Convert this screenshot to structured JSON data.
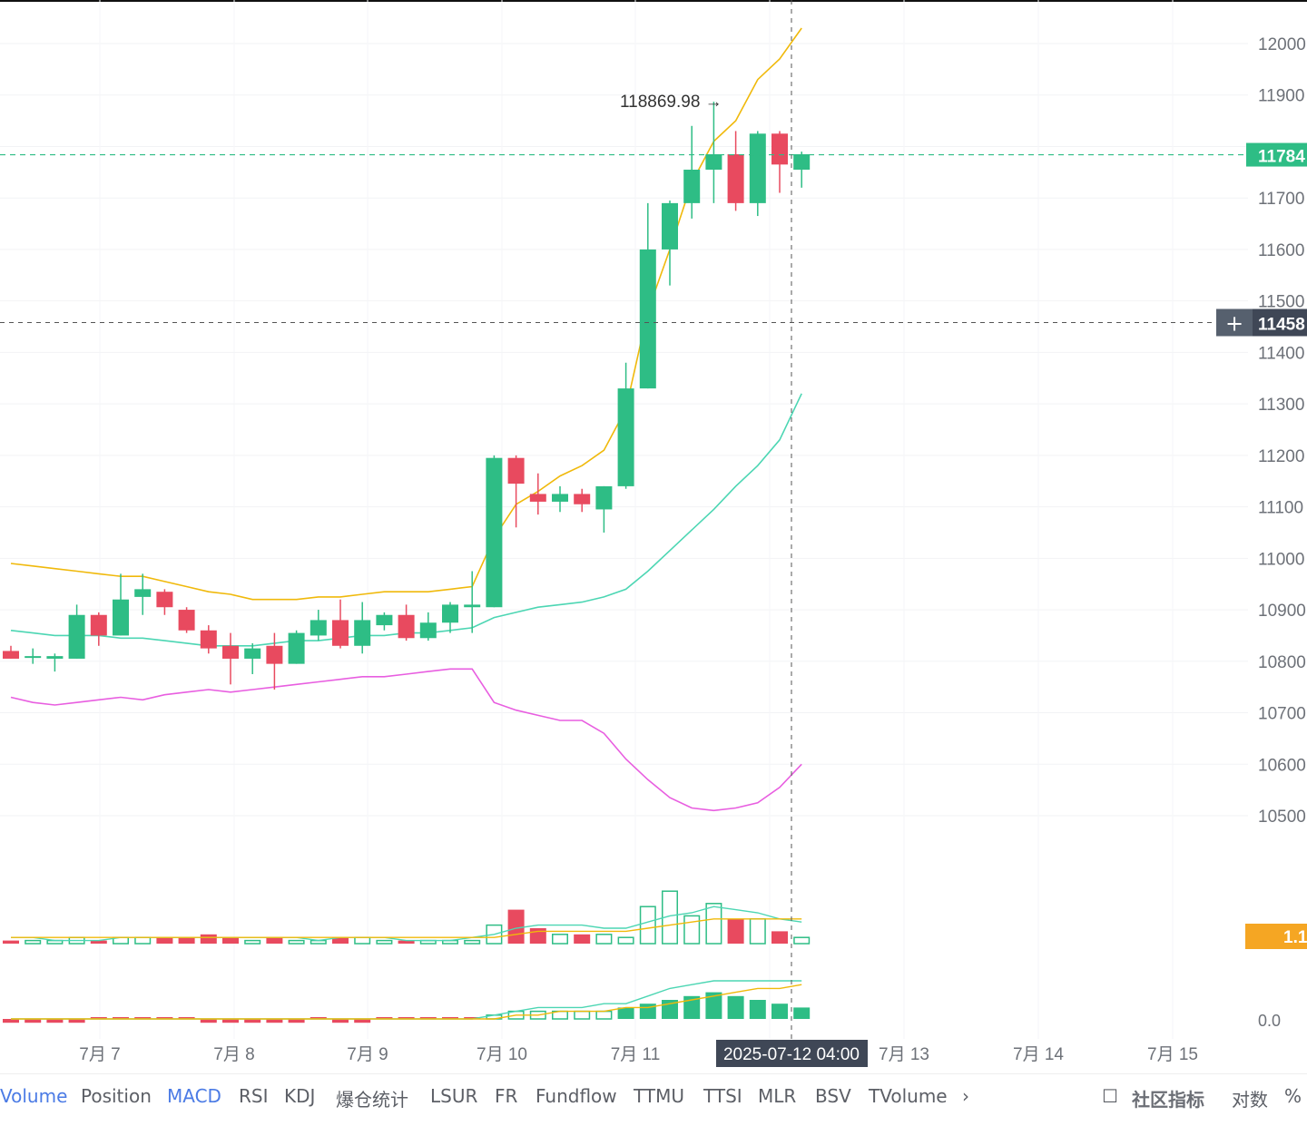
{
  "chart_data": {
    "type": "candlestick",
    "x_axis": {
      "labels": [
        "7月 7",
        "7月 8",
        "7月 9",
        "7月 10",
        "7月 11",
        "7月 13",
        "7月 14",
        "7月 15"
      ],
      "crosshair_label": "2025-07-12 04:00"
    },
    "y_axis": {
      "ticks": [
        "12000",
        "11900",
        "11700",
        "11600",
        "11500",
        "11400",
        "11300",
        "11200",
        "11100",
        "11000",
        "10900",
        "10800",
        "10700",
        "10600",
        "10500"
      ],
      "current_price_tag": "11784",
      "crosshair_price_tag": "11458",
      "volume_tag": "1.1",
      "lower_tag": "0.0"
    },
    "annotations": {
      "high_label": "118869.98 →"
    },
    "candles": [
      {
        "o": 108200,
        "h": 108300,
        "l": 108050,
        "c": 108050
      },
      {
        "o": 108100,
        "h": 108250,
        "l": 107950,
        "c": 108100
      },
      {
        "o": 108050,
        "h": 108150,
        "l": 107800,
        "c": 108100
      },
      {
        "o": 108050,
        "h": 109100,
        "l": 108050,
        "c": 108900
      },
      {
        "o": 108900,
        "h": 108950,
        "l": 108300,
        "c": 108500
      },
      {
        "o": 108500,
        "h": 109700,
        "l": 108500,
        "c": 109200
      },
      {
        "o": 109250,
        "h": 109700,
        "l": 108900,
        "c": 109400
      },
      {
        "o": 109350,
        "h": 109400,
        "l": 108900,
        "c": 109050
      },
      {
        "o": 109000,
        "h": 109050,
        "l": 108550,
        "c": 108600
      },
      {
        "o": 108600,
        "h": 108700,
        "l": 108150,
        "c": 108250
      },
      {
        "o": 108300,
        "h": 108550,
        "l": 107550,
        "c": 108050
      },
      {
        "o": 108050,
        "h": 108350,
        "l": 107750,
        "c": 108250
      },
      {
        "o": 108300,
        "h": 108550,
        "l": 107450,
        "c": 107950
      },
      {
        "o": 107950,
        "h": 108600,
        "l": 107950,
        "c": 108550
      },
      {
        "o": 108500,
        "h": 109000,
        "l": 108400,
        "c": 108800
      },
      {
        "o": 108800,
        "h": 109200,
        "l": 108250,
        "c": 108300
      },
      {
        "o": 108300,
        "h": 109150,
        "l": 108150,
        "c": 108800
      },
      {
        "o": 108700,
        "h": 108950,
        "l": 108600,
        "c": 108900
      },
      {
        "o": 108900,
        "h": 109100,
        "l": 108400,
        "c": 108450
      },
      {
        "o": 108450,
        "h": 108950,
        "l": 108400,
        "c": 108750
      },
      {
        "o": 108750,
        "h": 109150,
        "l": 108550,
        "c": 109100
      },
      {
        "o": 109050,
        "h": 109750,
        "l": 108550,
        "c": 109100
      },
      {
        "o": 109050,
        "h": 112000,
        "l": 109050,
        "c": 111950
      },
      {
        "o": 111950,
        "h": 112000,
        "l": 110600,
        "c": 111450
      },
      {
        "o": 111250,
        "h": 111650,
        "l": 110850,
        "c": 111100
      },
      {
        "o": 111100,
        "h": 111400,
        "l": 110900,
        "c": 111250
      },
      {
        "o": 111250,
        "h": 111350,
        "l": 110900,
        "c": 111050
      },
      {
        "o": 110950,
        "h": 111400,
        "l": 110500,
        "c": 111400
      },
      {
        "o": 111400,
        "h": 113800,
        "l": 111350,
        "c": 113300
      },
      {
        "o": 113300,
        "h": 116900,
        "l": 113300,
        "c": 116000
      },
      {
        "o": 116000,
        "h": 116950,
        "l": 115300,
        "c": 116900
      },
      {
        "o": 116900,
        "h": 118400,
        "l": 116600,
        "c": 117550
      },
      {
        "o": 117550,
        "h": 118870,
        "l": 116900,
        "c": 117850
      },
      {
        "o": 117850,
        "h": 118300,
        "l": 116750,
        "c": 116900
      },
      {
        "o": 116900,
        "h": 118300,
        "l": 116650,
        "c": 118250
      },
      {
        "o": 118250,
        "h": 118300,
        "l": 117100,
        "c": 117650
      },
      {
        "o": 117550,
        "h": 117900,
        "l": 117200,
        "c": 117850
      }
    ],
    "boll_upper": [
      109900,
      109850,
      109800,
      109750,
      109700,
      109650,
      109650,
      109550,
      109450,
      109350,
      109300,
      109200,
      109200,
      109200,
      109250,
      109250,
      109300,
      109350,
      109350,
      109350,
      109400,
      109450,
      110400,
      111050,
      111300,
      111600,
      111800,
      112100,
      112900,
      114800,
      116000,
      117300,
      118100,
      118500,
      119300,
      119700,
      120300
    ],
    "boll_mid": [
      108600,
      108550,
      108500,
      108500,
      108500,
      108450,
      108450,
      108400,
      108350,
      108300,
      108300,
      108300,
      108350,
      108400,
      108400,
      108450,
      108500,
      108500,
      108550,
      108550,
      108600,
      108650,
      108850,
      108950,
      109050,
      109100,
      109150,
      109250,
      109400,
      109750,
      110150,
      110550,
      110950,
      111400,
      111800,
      112300,
      113200
    ],
    "boll_lower": [
      107300,
      107200,
      107150,
      107200,
      107250,
      107300,
      107250,
      107350,
      107400,
      107450,
      107400,
      107450,
      107500,
      107550,
      107600,
      107650,
      107700,
      107700,
      107750,
      107800,
      107850,
      107850,
      107200,
      107050,
      106950,
      106850,
      106850,
      106600,
      106100,
      105700,
      105350,
      105150,
      105100,
      105150,
      105250,
      105550,
      106000
    ],
    "volume": [
      1,
      1,
      1,
      2,
      1,
      2,
      2,
      2,
      2,
      3,
      2,
      1,
      2,
      1,
      1,
      2,
      2,
      1,
      1,
      1,
      1,
      1,
      6,
      11,
      5,
      3,
      3,
      3,
      2,
      12,
      17,
      9,
      13,
      8,
      8,
      4,
      2
    ],
    "volume_ma1": [
      2,
      2,
      1,
      1,
      1,
      2,
      2,
      2,
      2,
      2,
      2,
      2,
      2,
      2,
      1,
      2,
      2,
      2,
      1,
      1,
      1,
      2,
      3,
      5,
      6,
      6,
      6,
      5,
      5,
      7,
      9,
      10,
      12,
      11,
      10,
      8,
      7
    ],
    "volume_ma2": [
      2,
      2,
      2,
      2,
      2,
      2,
      2,
      2,
      2,
      2,
      2,
      2,
      2,
      2,
      2,
      2,
      2,
      2,
      2,
      2,
      2,
      2,
      2,
      3,
      4,
      4,
      4,
      4,
      4,
      5,
      6,
      7,
      8,
      8,
      8,
      8,
      8
    ],
    "macd_hist": [
      -1,
      -1,
      -1,
      -1,
      0,
      0,
      0,
      0,
      0,
      -1,
      -1,
      -1,
      -1,
      -1,
      0,
      -1,
      -1,
      0,
      0,
      0,
      0,
      0,
      1,
      2,
      2,
      2,
      2,
      2,
      3,
      4,
      5,
      6,
      7,
      6,
      5,
      4,
      3
    ],
    "macd_dif": [
      0,
      0,
      0,
      0,
      0,
      0,
      0,
      0,
      0,
      0,
      0,
      0,
      0,
      0,
      0,
      0,
      0,
      0,
      0,
      0,
      0,
      0,
      1,
      2,
      3,
      3,
      3,
      4,
      4,
      6,
      8,
      9,
      10,
      10,
      10,
      10,
      10
    ],
    "macd_dea": [
      0,
      0,
      0,
      0,
      0,
      0,
      0,
      0,
      0,
      0,
      0,
      0,
      0,
      0,
      0,
      0,
      0,
      0,
      0,
      0,
      0,
      0,
      0,
      1,
      1,
      2,
      2,
      2,
      3,
      3,
      4,
      5,
      6,
      7,
      8,
      8,
      9
    ]
  },
  "toolbar": {
    "tabs": [
      "Volume",
      "Position",
      "MACD",
      "RSI",
      "KDJ",
      "爆仓统计",
      "LSUR",
      "FR",
      "Fundflow",
      "TTMU",
      "TTSI",
      "MLR",
      "BSV",
      "TVolume",
      "›"
    ],
    "active": [
      "Volume",
      "MACD"
    ],
    "community_label": "社区指标",
    "log_label": "对数",
    "percent_label": "%"
  },
  "colors": {
    "up": "#2ebd85",
    "down": "#e84a5f",
    "boll_upper": "#f0b90b",
    "boll_mid": "#4cd6b3",
    "boll_lower": "#e85ee0",
    "price_tag": "#2ebd85",
    "crosshair_tag": "#3f4756",
    "volume_tag": "#f5a623"
  }
}
